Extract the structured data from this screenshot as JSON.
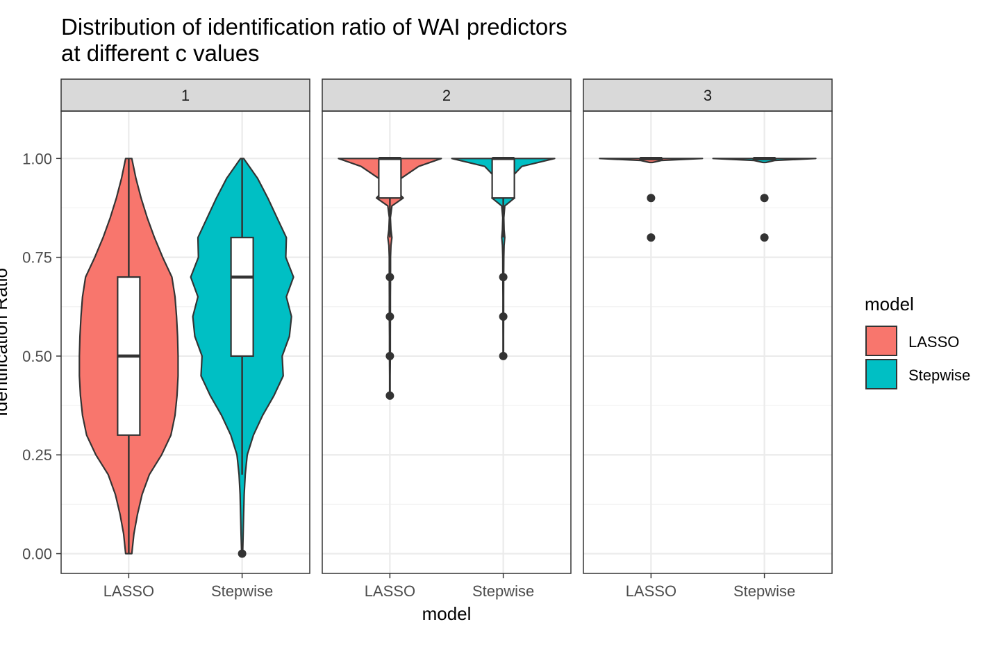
{
  "chart_data": {
    "type": "violin",
    "title": "Distribution of identification ratio of WAI predictors",
    "subtitle": "at different c values",
    "xlabel": "model",
    "ylabel": "Identification Ratio",
    "ylim": [
      -0.05,
      1.12
    ],
    "y_ticks": [
      0,
      0.25,
      0.5,
      0.75,
      1
    ],
    "y_tick_labels": [
      "0.00",
      "0.25",
      "0.50",
      "0.75",
      "1.00"
    ],
    "categories": [
      "LASSO",
      "Stepwise"
    ],
    "grid": true,
    "legend": {
      "title": "model",
      "position": "right",
      "items": [
        {
          "label": "LASSO",
          "color": "#F8766D"
        },
        {
          "label": "Stepwise",
          "color": "#00BFC4"
        }
      ]
    },
    "colors": {
      "LASSO": "#F8766D",
      "Stepwise": "#00BFC4"
    },
    "facets": [
      {
        "label": "1",
        "groups": [
          {
            "category": "LASSO",
            "box": {
              "q1": 0.3,
              "median": 0.5,
              "q3": 0.7,
              "whisker_low": 0,
              "whisker_high": 1
            },
            "outliers": [],
            "violin": [
              [
                0,
                0.06
              ],
              [
                0.05,
                0.1
              ],
              [
                0.1,
                0.17
              ],
              [
                0.15,
                0.26
              ],
              [
                0.2,
                0.4
              ],
              [
                0.25,
                0.64
              ],
              [
                0.3,
                0.82
              ],
              [
                0.35,
                0.9
              ],
              [
                0.4,
                0.94
              ],
              [
                0.45,
                0.96
              ],
              [
                0.5,
                0.96
              ],
              [
                0.55,
                0.95
              ],
              [
                0.6,
                0.93
              ],
              [
                0.65,
                0.9
              ],
              [
                0.7,
                0.84
              ],
              [
                0.75,
                0.66
              ],
              [
                0.8,
                0.5
              ],
              [
                0.85,
                0.36
              ],
              [
                0.9,
                0.24
              ],
              [
                0.95,
                0.14
              ],
              [
                1,
                0.06
              ]
            ]
          },
          {
            "category": "Stepwise",
            "box": {
              "q1": 0.5,
              "median": 0.7,
              "q3": 0.8,
              "whisker_low": 0.2,
              "whisker_high": 1
            },
            "outliers": [
              0
            ],
            "violin": [
              [
                0,
                0.01
              ],
              [
                0.05,
                0.02
              ],
              [
                0.1,
                0.03
              ],
              [
                0.15,
                0.04
              ],
              [
                0.2,
                0.06
              ],
              [
                0.25,
                0.1
              ],
              [
                0.3,
                0.22
              ],
              [
                0.35,
                0.4
              ],
              [
                0.4,
                0.62
              ],
              [
                0.45,
                0.8
              ],
              [
                0.5,
                0.78
              ],
              [
                0.55,
                0.92
              ],
              [
                0.6,
                0.96
              ],
              [
                0.65,
                0.86
              ],
              [
                0.7,
                1.0
              ],
              [
                0.75,
                0.85
              ],
              [
                0.8,
                0.86
              ],
              [
                0.85,
                0.68
              ],
              [
                0.9,
                0.5
              ],
              [
                0.95,
                0.3
              ],
              [
                1,
                0.03
              ]
            ]
          }
        ]
      },
      {
        "label": "2",
        "groups": [
          {
            "category": "LASSO",
            "box": {
              "q1": 0.9,
              "median": 1.0,
              "q3": 1.0,
              "whisker_low": 0.8,
              "whisker_high": 1.0
            },
            "outliers": [
              0.7,
              0.6,
              0.5,
              0.4
            ],
            "violin": [
              [
                0.4,
                0.005
              ],
              [
                0.45,
                0.005
              ],
              [
                0.5,
                0.008
              ],
              [
                0.55,
                0.008
              ],
              [
                0.6,
                0.01
              ],
              [
                0.65,
                0.01
              ],
              [
                0.7,
                0.012
              ],
              [
                0.75,
                0.012
              ],
              [
                0.78,
                0.02
              ],
              [
                0.8,
                0.04
              ],
              [
                0.82,
                0.02
              ],
              [
                0.85,
                0.01
              ],
              [
                0.88,
                0.04
              ],
              [
                0.9,
                0.26
              ],
              [
                0.92,
                0.12
              ],
              [
                0.95,
                0.22
              ],
              [
                0.98,
                0.56
              ],
              [
                1.0,
                1.0
              ]
            ]
          },
          {
            "category": "Stepwise",
            "box": {
              "q1": 0.9,
              "median": 1.0,
              "q3": 1.0,
              "whisker_low": 0.8,
              "whisker_high": 1.0
            },
            "outliers": [
              0.7,
              0.6,
              0.5
            ],
            "violin": [
              [
                0.5,
                0.005
              ],
              [
                0.55,
                0.005
              ],
              [
                0.6,
                0.006
              ],
              [
                0.65,
                0.006
              ],
              [
                0.7,
                0.008
              ],
              [
                0.75,
                0.01
              ],
              [
                0.78,
                0.016
              ],
              [
                0.8,
                0.03
              ],
              [
                0.82,
                0.016
              ],
              [
                0.85,
                0.01
              ],
              [
                0.88,
                0.03
              ],
              [
                0.9,
                0.22
              ],
              [
                0.92,
                0.1
              ],
              [
                0.95,
                0.14
              ],
              [
                0.98,
                0.36
              ],
              [
                1.0,
                1.0
              ]
            ]
          }
        ]
      },
      {
        "label": "3",
        "groups": [
          {
            "category": "LASSO",
            "box": {
              "q1": 1.0,
              "median": 1.0,
              "q3": 1.0,
              "whisker_low": 1.0,
              "whisker_high": 1.0
            },
            "outliers": [
              0.9,
              0.8
            ],
            "violin": [
              [
                0.99,
                0.03
              ],
              [
                0.995,
                0.2
              ],
              [
                1.0,
                1.0
              ]
            ]
          },
          {
            "category": "Stepwise",
            "box": {
              "q1": 1.0,
              "median": 1.0,
              "q3": 1.0,
              "whisker_low": 1.0,
              "whisker_high": 1.0
            },
            "outliers": [
              0.9,
              0.8
            ],
            "violin": [
              [
                0.99,
                0.03
              ],
              [
                0.995,
                0.2
              ],
              [
                1.0,
                1.0
              ]
            ]
          }
        ]
      }
    ]
  }
}
